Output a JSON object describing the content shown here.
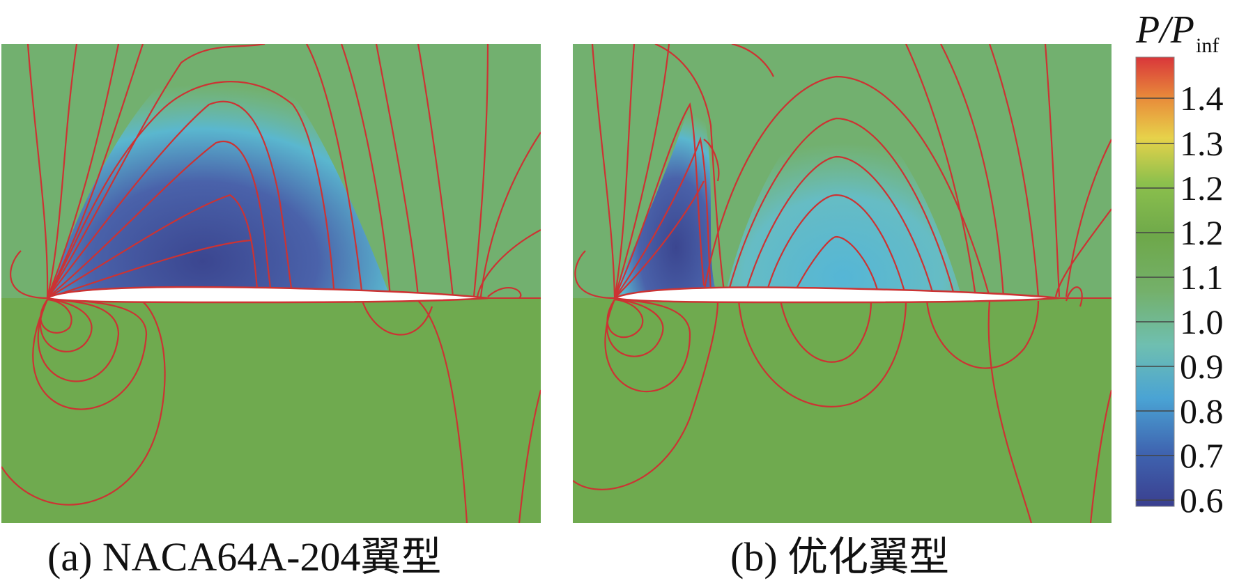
{
  "panels": [
    {
      "id": "a",
      "caption": "(a) NACA64A-204翼型"
    },
    {
      "id": "b",
      "caption": "(b) 优化翼型"
    }
  ],
  "colorbar": {
    "label_main": "P/P",
    "label_sub": "inf",
    "ticks": [
      "1.4",
      "1.3",
      "1.2",
      "1.2",
      "1.1",
      "1.0",
      "0.9",
      "0.8",
      "0.7",
      "0.6"
    ],
    "colors": [
      "#3a3f8f",
      "#3f64b0",
      "#4aa3d4",
      "#6fbfb0",
      "#74b06a",
      "#6ea84a",
      "#8cc04d",
      "#e7d24a",
      "#e88a3a",
      "#d9363a"
    ]
  },
  "colors": {
    "background_field": "#6faa4f",
    "contour_line": "#cc3333",
    "low_pressure": "#3b4690",
    "mid_pressure": "#5ab7cf"
  }
}
